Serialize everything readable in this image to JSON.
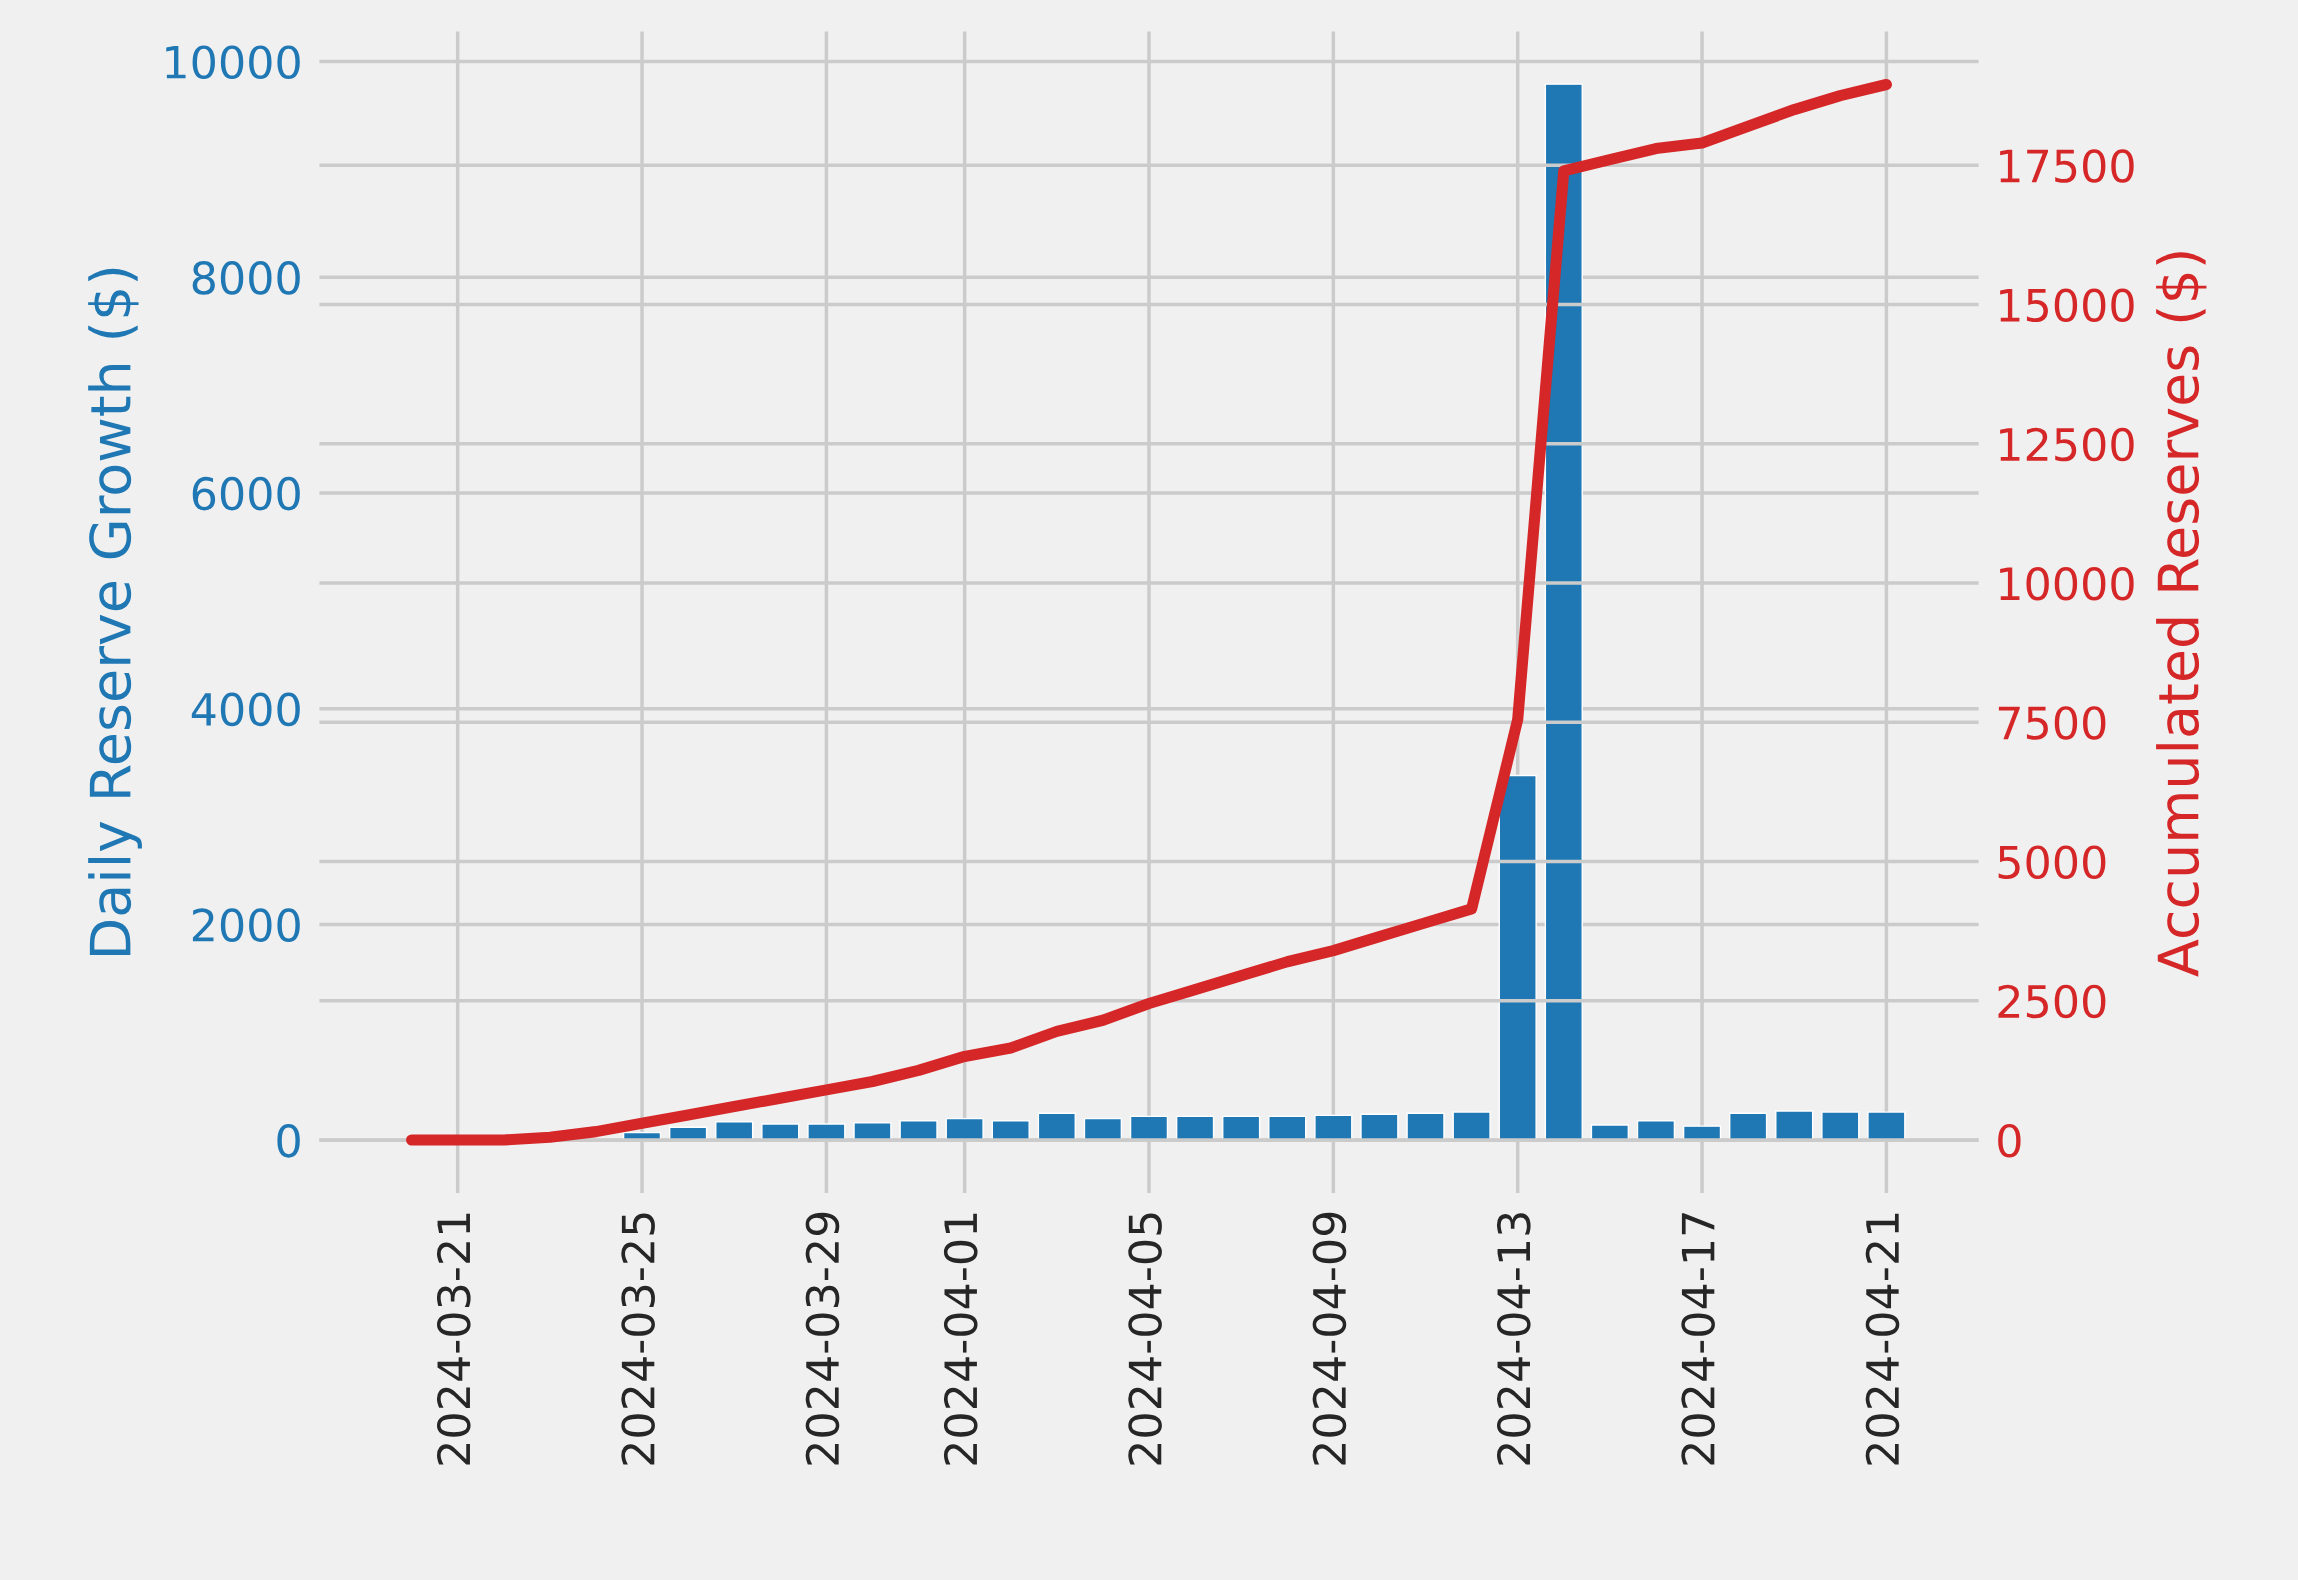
{
  "chart_data": {
    "type": "bar",
    "xlabel": null,
    "ylabel": "Daily Reserve Growth ($)",
    "y2label": "Accumulated Reserves ($)",
    "x": [
      "2024-03-20",
      "2024-03-21",
      "2024-03-22",
      "2024-03-23",
      "2024-03-24",
      "2024-03-25",
      "2024-03-26",
      "2024-03-27",
      "2024-03-28",
      "2024-03-29",
      "2024-03-30",
      "2024-03-31",
      "2024-04-01",
      "2024-04-02",
      "2024-04-03",
      "2024-04-04",
      "2024-04-05",
      "2024-04-06",
      "2024-04-07",
      "2024-04-08",
      "2024-04-09",
      "2024-04-10",
      "2024-04-11",
      "2024-04-12",
      "2024-04-13",
      "2024-04-14",
      "2024-04-15",
      "2024-04-16",
      "2024-04-17",
      "2024-04-18",
      "2024-04-19",
      "2024-04-20",
      "2024-04-21"
    ],
    "series": [
      {
        "axis": "y",
        "color": "#1f77b4",
        "values": [
          null,
          null,
          null,
          null,
          null,
          70,
          120,
          170,
          150,
          150,
          160,
          180,
          200,
          180,
          250,
          200,
          220,
          220,
          220,
          220,
          230,
          240,
          250,
          260,
          3380,
          9790,
          140,
          180,
          130,
          250,
          270,
          260,
          260
        ]
      },
      {
        "type": "line",
        "axis": "y2",
        "color": "#d62728",
        "values": [
          0,
          0,
          0,
          50,
          150,
          300,
          450,
          600,
          750,
          900,
          1050,
          1250,
          1500,
          1650,
          1950,
          2150,
          2450,
          2700,
          2950,
          3200,
          3400,
          3650,
          3900,
          4150,
          7550,
          17400,
          17600,
          17800,
          17900,
          18200,
          18500,
          18750,
          18950
        ]
      }
    ],
    "xlim": [
      "2024-03-18",
      "2024-04-23"
    ],
    "xticks": [
      {
        "value": "2024-03-21",
        "label": "2024-03-21"
      },
      {
        "value": "2024-03-25",
        "label": "2024-03-25"
      },
      {
        "value": "2024-03-29",
        "label": "2024-03-29"
      },
      {
        "value": "2024-04-01",
        "label": "2024-04-01"
      },
      {
        "value": "2024-04-05",
        "label": "2024-04-05"
      },
      {
        "value": "2024-04-09",
        "label": "2024-04-09"
      },
      {
        "value": "2024-04-13",
        "label": "2024-04-13"
      },
      {
        "value": "2024-04-17",
        "label": "2024-04-17"
      },
      {
        "value": "2024-04-21",
        "label": "2024-04-21"
      }
    ],
    "ylim": [
      -489,
      10277
    ],
    "yticks": [
      0,
      2000,
      4000,
      6000,
      8000,
      10000
    ],
    "y2lim": [
      -950,
      19900
    ],
    "y2ticks": [
      0,
      2500,
      5000,
      7500,
      10000,
      12500,
      15000,
      17500
    ],
    "grid": true
  }
}
